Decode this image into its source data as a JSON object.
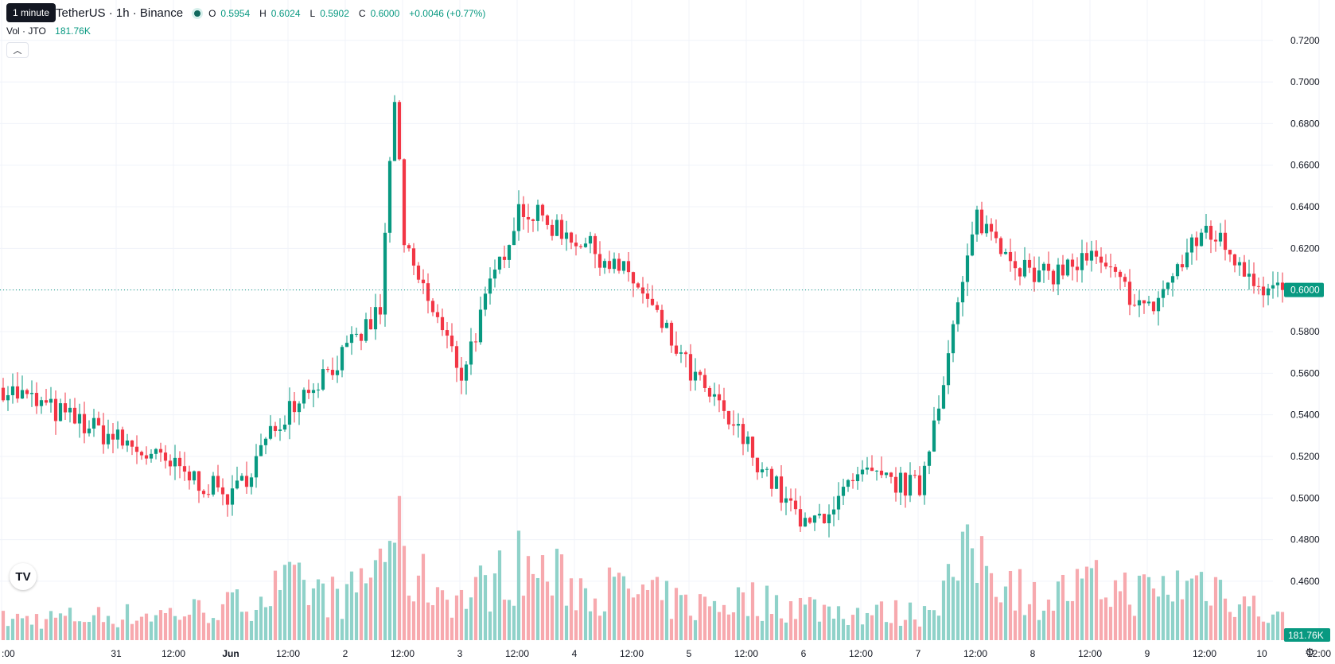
{
  "legend": {
    "symbol": "TetherUS · 1h · Binance",
    "tooltip": "1 minute",
    "o_label": "O",
    "o": "0.5954",
    "h_label": "H",
    "h": "0.6024",
    "l_label": "L",
    "l": "0.5902",
    "c_label": "C",
    "c": "0.6000",
    "change": "+0.0046 (+0.77%)"
  },
  "volume_legend": {
    "label": "Vol · JTO",
    "value": "181.76K"
  },
  "collapse_icon": "chevron-up-icon",
  "logo": "TV",
  "colors": {
    "up": "#089981",
    "down": "#f23645",
    "up_vol": "#8fd2c9",
    "down_vol": "#f7a9ae",
    "grid": "#f0f3fa",
    "text": "#131722"
  },
  "chart_data": {
    "type": "candlestick",
    "y_ticks": [
      "0.7200",
      "0.7000",
      "0.6800",
      "0.6600",
      "0.6400",
      "0.6200",
      "0.6000",
      "0.5800",
      "0.5600",
      "0.5400",
      "0.5200",
      "0.5000",
      "0.4800",
      "0.4600"
    ],
    "ylim": [
      0.455,
      0.7245
    ],
    "x_ticks": [
      ":00",
      "31",
      "12:00",
      "Jun",
      "12:00",
      "2",
      "12:00",
      "3",
      "12:00",
      "4",
      "12:00",
      "5",
      "12:00",
      "6",
      "12:00",
      "7",
      "12:00",
      "8",
      "12:00",
      "9",
      "12:00",
      "10",
      "12:00"
    ],
    "last_price": "0.6000",
    "last_volume": "181.76K",
    "anchors": [
      [
        "00:00",
        0.553,
        0.15
      ],
      [
        "31 00:00",
        0.528,
        0.18
      ],
      [
        "31 12:00",
        0.514,
        0.2
      ],
      [
        "Jun 00:00",
        0.5,
        0.25
      ],
      [
        "Jun 12:00",
        0.545,
        0.4
      ],
      [
        "2 00:00",
        0.57,
        0.3
      ],
      [
        "2 07:00",
        0.59,
        0.6
      ],
      [
        "2 10:00",
        0.694,
        0.9
      ],
      [
        "2 12:00",
        0.62,
        0.5
      ],
      [
        "3 00:00",
        0.56,
        0.3
      ],
      [
        "3 12:00",
        0.64,
        0.55
      ],
      [
        "4 00:00",
        0.625,
        0.4
      ],
      [
        "4 12:00",
        0.605,
        0.35
      ],
      [
        "5 00:00",
        0.56,
        0.25
      ],
      [
        "5 12:00",
        0.525,
        0.3
      ],
      [
        "6 00:00",
        0.485,
        0.25
      ],
      [
        "6 12:00",
        0.51,
        0.2
      ],
      [
        "7 00:00",
        0.505,
        0.2
      ],
      [
        "7 12:00",
        0.635,
        0.65
      ],
      [
        "8 00:00",
        0.605,
        0.3
      ],
      [
        "8 12:00",
        0.615,
        0.4
      ],
      [
        "9 00:00",
        0.59,
        0.35
      ],
      [
        "9 12:00",
        0.63,
        0.45
      ],
      [
        "10 00:00",
        0.602,
        0.2
      ],
      [
        "10 04:00",
        0.6,
        0.15
      ]
    ]
  }
}
